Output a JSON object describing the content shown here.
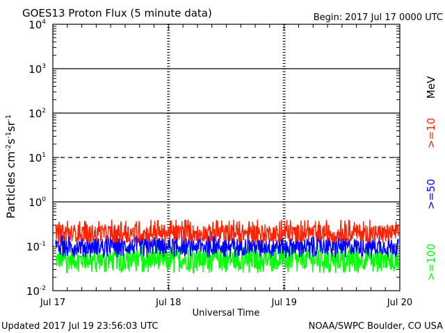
{
  "header": {
    "title": "GOES13 Proton Flux (5 minute data)",
    "begin": "Begin: 2017 Jul 17 0000 UTC"
  },
  "footer": {
    "updated": "Updated 2017 Jul 19 23:56:03 UTC",
    "source": "NOAA/SWPC Boulder, CO USA"
  },
  "chart_data": {
    "type": "line",
    "title": "GOES13 Proton Flux (5 minute data)",
    "xlabel": "Universal Time",
    "ylabel": "Particles cm⁻²s⁻¹sr⁻¹",
    "yscale": "log",
    "ylim": [
      0.01,
      10000
    ],
    "yticks": [
      {
        "base": "10",
        "exp": "4"
      },
      {
        "base": "10",
        "exp": "3"
      },
      {
        "base": "10",
        "exp": "2"
      },
      {
        "base": "10",
        "exp": "1"
      },
      {
        "base": "10",
        "exp": "0"
      },
      {
        "base": "10",
        "exp": "-1"
      },
      {
        "base": "10",
        "exp": "-2"
      }
    ],
    "xticks": [
      "Jul 17",
      "Jul 18",
      "Jul 19",
      "Jul 20"
    ],
    "xlim": [
      "2017-07-17 00:00",
      "2017-07-20 00:00"
    ],
    "grid": true,
    "reference_levels": [
      {
        "value": 1000,
        "style": "solid"
      },
      {
        "value": 100,
        "style": "solid"
      },
      {
        "value": 10,
        "style": "dashed"
      },
      {
        "value": 1,
        "style": "solid"
      }
    ],
    "energy_unit": "MeV",
    "series": [
      {
        "name": ">=10",
        "color": "#ff2200",
        "typical": 0.2,
        "range": [
          0.12,
          0.4
        ]
      },
      {
        "name": ">=50",
        "color": "#0000ff",
        "typical": 0.1,
        "range": [
          0.055,
          0.18
        ]
      },
      {
        "name": ">=100",
        "color": "#00ff00",
        "typical": 0.05,
        "range": [
          0.025,
          0.1
        ]
      }
    ]
  }
}
